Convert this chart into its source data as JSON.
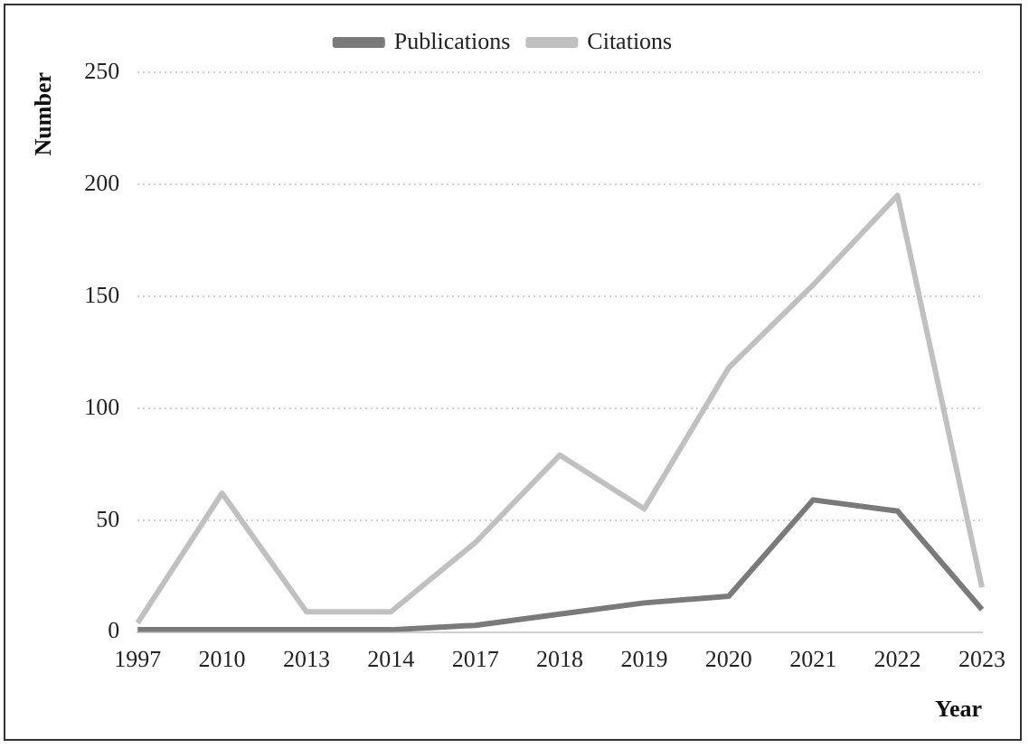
{
  "chart_data": {
    "type": "line",
    "xlabel": "Year",
    "ylabel": "Number",
    "categories": [
      "1997",
      "2010",
      "2013",
      "2014",
      "2017",
      "2018",
      "2019",
      "2020",
      "2021",
      "2022",
      "2023"
    ],
    "series": [
      {
        "name": "Publications",
        "color": "#7a7a7a",
        "values": [
          1,
          1,
          1,
          1,
          3,
          8,
          13,
          16,
          59,
          54,
          10
        ]
      },
      {
        "name": "Citations",
        "color": "#c0c0c0",
        "values": [
          4,
          62,
          9,
          9,
          40,
          79,
          55,
          118,
          155,
          195,
          20
        ]
      }
    ],
    "ylim": [
      0,
      250
    ],
    "yticks": [
      0,
      50,
      100,
      150,
      200,
      250
    ],
    "grid": "y",
    "legend": "top",
    "marker": "none",
    "line_style": "solid"
  }
}
